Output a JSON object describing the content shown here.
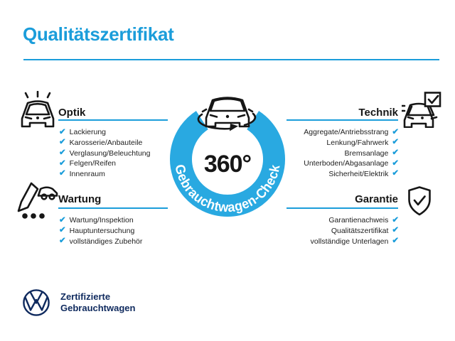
{
  "title": "Qualitätszertifikat",
  "colors": {
    "accent_blue": "#1b9dda",
    "ring_blue": "#29a9e1",
    "vw_navy": "#0f2a5e",
    "text_dark": "#212121"
  },
  "checkmark": "✔",
  "center": {
    "degree_label": "360°",
    "ring_label": "Gebrauchtwagen-Check",
    "icon": "rotating-car-icon"
  },
  "sections": [
    {
      "id": "optik",
      "heading": "Optik",
      "icon": "car-front-shine-icon",
      "side": "left",
      "items": [
        "Lackierung",
        "Karosserie/Anbauteile",
        "Verglasung/Beleuchtung",
        "Felgen/Reifen",
        "Innenraum"
      ]
    },
    {
      "id": "technik",
      "heading": "Technik",
      "icon": "car-checkbox-icon",
      "side": "right",
      "items": [
        "Aggregate/Antriebsstrang",
        "Lenkung/Fahrwerk",
        "Bremsanlage",
        "Unterboden/Abgasanlage",
        "Sicherheit/Elektrik"
      ]
    },
    {
      "id": "wartung",
      "heading": "Wartung",
      "icon": "pencil-checklist-icon",
      "side": "left",
      "items": [
        "Wartung/Inspektion",
        "Hauptuntersuchung",
        "vollständiges Zubehör"
      ]
    },
    {
      "id": "garantie",
      "heading": "Garantie",
      "icon": "shield-check-icon",
      "side": "right",
      "items": [
        "Garantienachweis",
        "Qualitätszertifikat",
        "vollständige Unterlagen"
      ]
    }
  ],
  "footer": {
    "logo": "vw-logo",
    "line1": "Zertifizierte",
    "line2": "Gebrauchtwagen"
  }
}
